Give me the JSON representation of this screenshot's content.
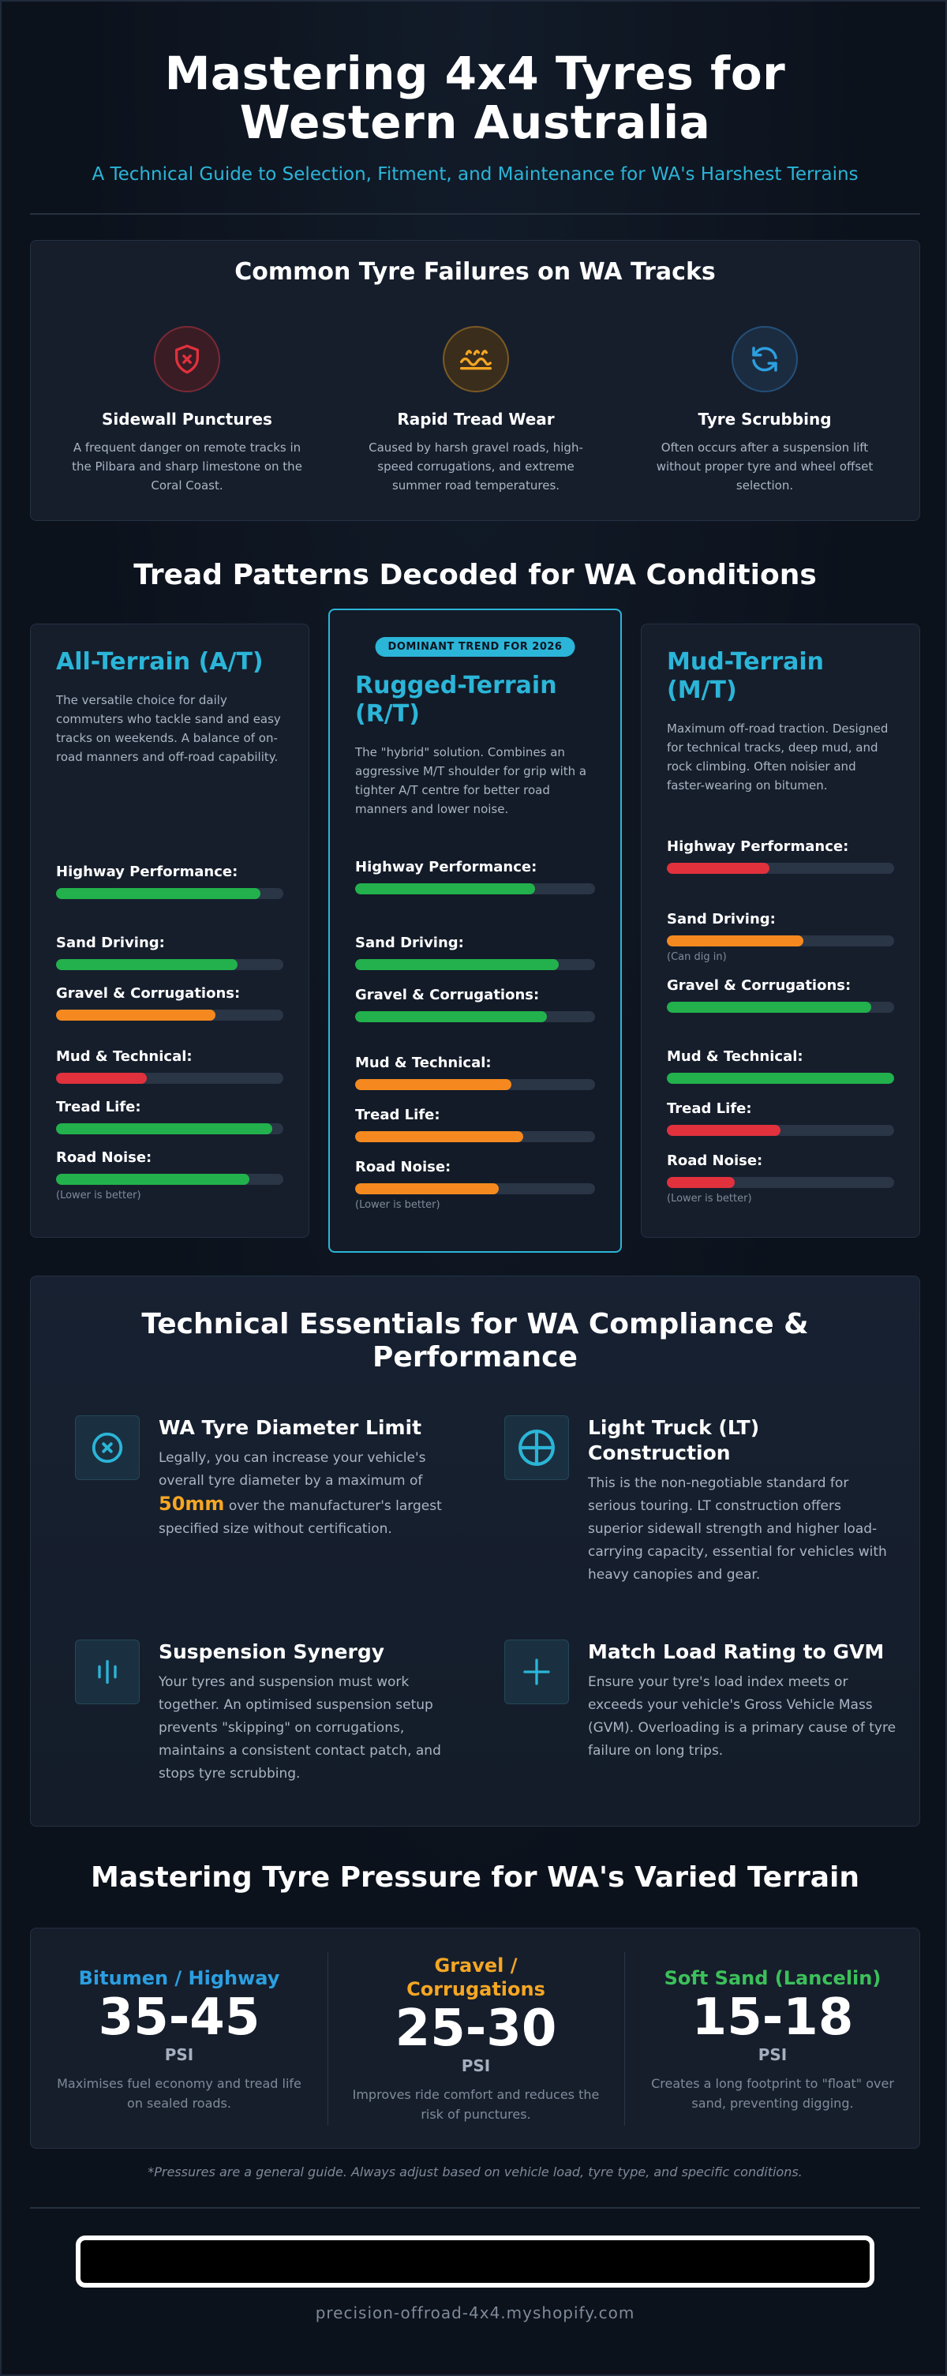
{
  "header": {
    "title_line1": "Mastering 4x4 Tyres for",
    "title_line2": "Western Australia",
    "subtitle": "A Technical Guide to Selection, Fitment, and Maintenance for WA's Harshest Terrains"
  },
  "failures": {
    "title": "Common Tyre Failures on WA Tracks",
    "items": [
      {
        "icon": "shield-x-icon",
        "color": "#e0313d",
        "title": "Sidewall Punctures",
        "desc": "A frequent danger on remote tracks in the Pilbara and sharp limestone on the Coral Coast."
      },
      {
        "icon": "wave-tread-icon",
        "color": "#f5a623",
        "title": "Rapid Tread Wear",
        "desc": "Caused by harsh gravel roads, high-speed corrugations, and extreme summer road temperatures."
      },
      {
        "icon": "rotate-arrows-icon",
        "color": "#2b9fe0",
        "title": "Tyre Scrubbing",
        "desc": "Often occurs after a suspension lift without proper tyre and wheel offset selection."
      }
    ]
  },
  "tread": {
    "title": "Tread Patterns Decoded for WA Conditions",
    "colors": {
      "green": "#22b14c",
      "orange": "#f5891f",
      "red": "#e0313d"
    },
    "cards": [
      {
        "name": "All-Terrain (A/T)",
        "desc": "The versatile choice for daily commuters who tackle sand and easy tracks on weekends. A balance of on-road manners and off-road capability.",
        "metrics": [
          {
            "label": "Highway Performance:",
            "value": 0.9,
            "color": "green",
            "note": ""
          },
          {
            "label": "Sand Driving:",
            "value": 0.8,
            "color": "green",
            "note": ""
          },
          {
            "label": "Gravel & Corrugations:",
            "value": 0.7,
            "color": "orange",
            "note": ""
          },
          {
            "label": "Mud & Technical:",
            "value": 0.4,
            "color": "red",
            "note": ""
          },
          {
            "label": "Tread Life:",
            "value": 0.95,
            "color": "green",
            "note": ""
          },
          {
            "label": "Road Noise:",
            "value": 0.85,
            "color": "green",
            "note": "(Lower is better)"
          }
        ]
      },
      {
        "badge": "DOMINANT TREND FOR 2026",
        "name": "Rugged-Terrain (R/T)",
        "desc": "The \"hybrid\" solution. Combines an aggressive M/T shoulder for grip with a tighter A/T centre for better road manners and lower noise.",
        "metrics": [
          {
            "label": "Highway Performance:",
            "value": 0.75,
            "color": "green",
            "note": ""
          },
          {
            "label": "Sand Driving:",
            "value": 0.85,
            "color": "green",
            "note": ""
          },
          {
            "label": "Gravel & Corrugations:",
            "value": 0.8,
            "color": "green",
            "note": ""
          },
          {
            "label": "Mud & Technical:",
            "value": 0.65,
            "color": "orange",
            "note": ""
          },
          {
            "label": "Tread Life:",
            "value": 0.7,
            "color": "orange",
            "note": ""
          },
          {
            "label": "Road Noise:",
            "value": 0.6,
            "color": "orange",
            "note": "(Lower is better)"
          }
        ]
      },
      {
        "name": "Mud-Terrain (M/T)",
        "desc": "Maximum off-road traction. Designed for technical tracks, deep mud, and rock climbing. Often noisier and faster-wearing on bitumen.",
        "metrics": [
          {
            "label": "Highway Performance:",
            "value": 0.45,
            "color": "red",
            "note": ""
          },
          {
            "label": "Sand Driving:",
            "value": 0.6,
            "color": "orange",
            "note": "(Can dig in)"
          },
          {
            "label": "Gravel & Corrugations:",
            "value": 0.9,
            "color": "green",
            "note": ""
          },
          {
            "label": "Mud & Technical:",
            "value": 1.0,
            "color": "green",
            "note": ""
          },
          {
            "label": "Tread Life:",
            "value": 0.5,
            "color": "red",
            "note": ""
          },
          {
            "label": "Road Noise:",
            "value": 0.3,
            "color": "red",
            "note": "(Lower is better)"
          }
        ]
      }
    ]
  },
  "tech": {
    "title": "Technical Essentials for WA Compliance & Performance",
    "items": [
      {
        "icon": "circle-x-icon",
        "title": "WA Tyre Diameter Limit",
        "text_before": "Legally, you can increase your vehicle's overall tyre diameter by a maximum of",
        "highlight": "50mm",
        "text_after": "over the manufacturer's largest specified size without certification."
      },
      {
        "icon": "circle-plus-icon",
        "title": "Light Truck (LT) Construction",
        "text": "This is the non-negotiable standard for serious touring. LT construction offers superior sidewall strength and higher load-carrying capacity, essential for vehicles with heavy canopies and gear."
      },
      {
        "icon": "suspension-bars-icon",
        "title": "Suspension Synergy",
        "text": "Your tyres and suspension must work together. An optimised suspension setup prevents \"skipping\" on corrugations, maintains a consistent contact patch, and stops tyre scrubbing."
      },
      {
        "icon": "plus-icon",
        "title": "Match Load Rating to GVM",
        "text": "Ensure your tyre's load index meets or exceeds your vehicle's Gross Vehicle Mass (GVM). Overloading is a primary cause of tyre failure on long trips."
      }
    ]
  },
  "pressure": {
    "title": "Mastering Tyre Pressure for WA's Varied Terrain",
    "items": [
      {
        "name": "Bitumen / Highway",
        "color": "#2b9fe0",
        "value": "35-45",
        "unit": "PSI",
        "desc": "Maximises fuel economy and tread life on sealed roads."
      },
      {
        "name": "Gravel / Corrugations",
        "color": "#f5a623",
        "value": "25-30",
        "unit": "PSI",
        "desc": "Improves ride comfort and reduces the risk of punctures."
      },
      {
        "name": "Soft Sand (Lancelin)",
        "color": "#3cc05a",
        "value": "15-18",
        "unit": "PSI",
        "desc": "Creates a long footprint to \"float\" over sand, preventing digging."
      }
    ],
    "footnote": "*Pressures are a general guide. Always adjust based on vehicle load, tyre type, and specific conditions."
  },
  "footer": {
    "site": "precision-offroad-4x4.myshopify.com"
  }
}
